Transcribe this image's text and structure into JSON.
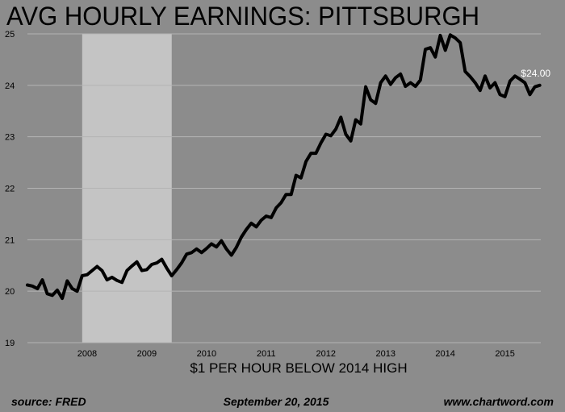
{
  "chart_data": {
    "type": "line",
    "title": "AVG HOURLY EARNINGS: PITTSBURGH",
    "subtitle": "$1 PER HOUR BELOW 2014 HIGH",
    "end_label": "$24.00",
    "xlabel": "",
    "ylabel": "",
    "xlim": [
      2007.0,
      2015.6
    ],
    "ylim": [
      19,
      25
    ],
    "y_ticks": [
      19,
      20,
      21,
      22,
      23,
      24,
      25
    ],
    "x_ticks": [
      2008,
      2009,
      2010,
      2011,
      2012,
      2013,
      2014,
      2015
    ],
    "grid": true,
    "recession": {
      "start": 2007.917,
      "end": 2009.417
    },
    "colors": {
      "background": "#8c8c8c",
      "recession": "#c4c4c4",
      "line": "#000000",
      "grid": "#b4b4b4",
      "text": "#000000",
      "end_label": "#ffffff"
    },
    "series": [
      {
        "x": [
          2007.0,
          2007.083,
          2007.167,
          2007.25,
          2007.333,
          2007.417,
          2007.5,
          2007.583,
          2007.667,
          2007.75,
          2007.833,
          2007.917,
          2008.0,
          2008.083,
          2008.167,
          2008.25,
          2008.333,
          2008.417,
          2008.5,
          2008.583,
          2008.667,
          2008.75,
          2008.833,
          2008.917,
          2009.0,
          2009.083,
          2009.167,
          2009.25,
          2009.333,
          2009.417,
          2009.5,
          2009.583,
          2009.667,
          2009.75,
          2009.833,
          2009.917,
          2010.0,
          2010.083,
          2010.167,
          2010.25,
          2010.333,
          2010.417,
          2010.5,
          2010.583,
          2010.667,
          2010.75,
          2010.833,
          2010.917,
          2011.0,
          2011.083,
          2011.167,
          2011.25,
          2011.333,
          2011.417,
          2011.5,
          2011.583,
          2011.667,
          2011.75,
          2011.833,
          2011.917,
          2012.0,
          2012.083,
          2012.167,
          2012.25,
          2012.333,
          2012.417,
          2012.5,
          2012.583,
          2012.667,
          2012.75,
          2012.833,
          2012.917,
          2013.0,
          2013.083,
          2013.167,
          2013.25,
          2013.333,
          2013.417,
          2013.5,
          2013.583,
          2013.667,
          2013.75,
          2013.833,
          2013.917,
          2014.0,
          2014.083,
          2014.167,
          2014.25,
          2014.333,
          2014.417,
          2014.5,
          2014.583,
          2014.667,
          2014.75,
          2014.833,
          2014.917,
          2015.0,
          2015.083,
          2015.167,
          2015.25,
          2015.333,
          2015.417,
          2015.5,
          2015.583
        ],
        "values": [
          20.12,
          20.1,
          20.05,
          20.22,
          19.95,
          19.92,
          20.02,
          19.86,
          20.2,
          20.05,
          20.0,
          20.3,
          20.32,
          20.4,
          20.48,
          20.4,
          20.22,
          20.27,
          20.21,
          20.17,
          20.4,
          20.49,
          20.57,
          20.4,
          20.42,
          20.52,
          20.55,
          20.62,
          20.45,
          20.3,
          20.42,
          20.55,
          20.72,
          20.75,
          20.82,
          20.75,
          20.83,
          20.92,
          20.86,
          20.98,
          20.82,
          20.7,
          20.85,
          21.05,
          21.2,
          21.32,
          21.25,
          21.38,
          21.46,
          21.43,
          21.62,
          21.72,
          21.88,
          21.88,
          22.25,
          22.2,
          22.52,
          22.68,
          22.68,
          22.88,
          23.05,
          23.02,
          23.15,
          23.38,
          23.05,
          22.92,
          23.33,
          23.25,
          23.97,
          23.72,
          23.65,
          24.05,
          24.18,
          24.02,
          24.15,
          24.22,
          23.98,
          24.05,
          23.98,
          24.1,
          24.7,
          24.73,
          24.55,
          24.97,
          24.68,
          24.98,
          24.92,
          24.83,
          24.27,
          24.17,
          24.05,
          23.9,
          24.18,
          23.95,
          24.05,
          23.82,
          23.78,
          24.08,
          24.18,
          24.12,
          24.05,
          23.82,
          23.97,
          24.0
        ]
      }
    ]
  },
  "footer": {
    "source": "source: FRED",
    "date": "September 20, 2015",
    "site": "www.chartword.com"
  }
}
